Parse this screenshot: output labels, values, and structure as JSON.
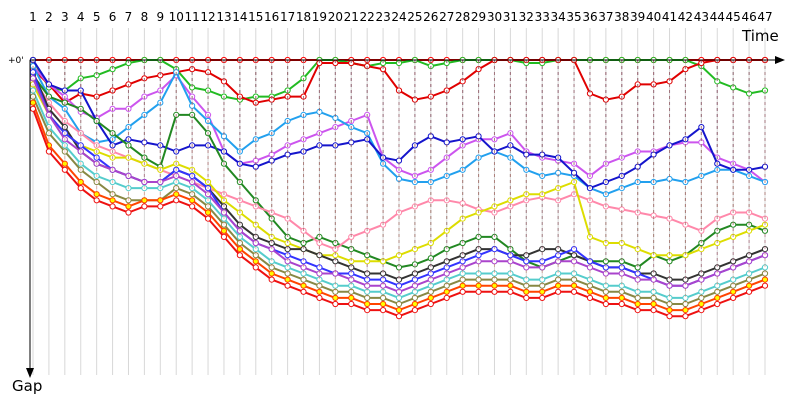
{
  "chart_data": {
    "type": "line",
    "x_axis_label": "Time",
    "y_axis_label": "Gap",
    "y_zero_label": "+0'",
    "x_ticks": [
      "1",
      "2",
      "3",
      "4",
      "5",
      "6",
      "7",
      "8",
      "9",
      "10",
      "11",
      "12",
      "13",
      "14",
      "15",
      "16",
      "17",
      "18",
      "19",
      "20",
      "21",
      "22",
      "23",
      "24",
      "25",
      "26",
      "27",
      "28",
      "29",
      "30",
      "31",
      "32",
      "33",
      "34",
      "35",
      "36",
      "37",
      "38",
      "39",
      "40",
      "41",
      "42",
      "43",
      "44",
      "45",
      "46",
      "47"
    ],
    "y_range": [
      0,
      100
    ],
    "laps": [
      1,
      2,
      3,
      4,
      5,
      6,
      7,
      8,
      9,
      10,
      11,
      12,
      13,
      14,
      15,
      16,
      17,
      18,
      19,
      20,
      21,
      22,
      23,
      24,
      25,
      26,
      27,
      28,
      29,
      30,
      31,
      32,
      33,
      34,
      35,
      36,
      37,
      38,
      39,
      40,
      41,
      42,
      43,
      44,
      45,
      46,
      47
    ],
    "series": [
      {
        "color": "#ff0000",
        "marker": "#ffffff",
        "values": [
          0,
          0,
          0,
          0,
          0,
          0,
          0,
          0,
          0,
          0,
          0,
          0,
          0,
          0,
          0,
          0,
          0,
          0,
          0,
          0,
          0,
          0,
          0,
          0,
          0,
          0,
          0,
          0,
          0,
          0,
          0,
          0,
          0,
          0,
          0,
          0,
          0,
          0,
          0,
          0,
          0,
          0,
          0,
          0,
          0,
          0,
          0
        ]
      },
      {
        "color": "#22bb22",
        "marker": "#ffffff",
        "values": [
          0,
          9,
          10,
          6,
          5,
          3,
          1,
          0,
          0,
          3,
          9,
          10,
          12,
          13,
          12,
          12,
          10,
          6,
          0,
          0,
          1,
          2,
          1,
          1,
          0,
          2,
          1,
          0,
          0,
          0,
          0,
          1,
          1,
          0,
          0,
          0,
          0,
          0,
          0,
          0,
          0,
          0,
          2,
          7,
          9,
          11,
          10
        ]
      },
      {
        "color": "#e00000",
        "marker": "#ffffff",
        "values": [
          3,
          8,
          14,
          11,
          12,
          10,
          8,
          6,
          5,
          4,
          3,
          4,
          7,
          12,
          14,
          13,
          12,
          12,
          1,
          1,
          1,
          2,
          3,
          10,
          13,
          12,
          10,
          7,
          3,
          0,
          0,
          0,
          0,
          0,
          0,
          11,
          13,
          12,
          8,
          8,
          7,
          3,
          1,
          0,
          0,
          0,
          0
        ]
      },
      {
        "color": "#cc55ee",
        "marker": "#ffffff",
        "values": [
          2,
          8,
          12,
          17,
          19,
          16,
          16,
          12,
          10,
          5,
          12,
          18,
          30,
          34,
          33,
          31,
          28,
          26,
          24,
          22,
          20,
          18,
          32,
          36,
          38,
          36,
          32,
          28,
          26,
          26,
          24,
          30,
          32,
          33,
          34,
          38,
          34,
          32,
          30,
          30,
          28,
          27,
          27,
          32,
          34,
          36,
          40
        ]
      },
      {
        "color": "#22a0ee",
        "marker": "#ffffff",
        "values": [
          2,
          12,
          16,
          24,
          27,
          26,
          22,
          18,
          14,
          4,
          15,
          20,
          25,
          30,
          26,
          24,
          20,
          18,
          17,
          19,
          22,
          24,
          34,
          39,
          40,
          40,
          38,
          36,
          32,
          30,
          32,
          36,
          38,
          37,
          38,
          42,
          44,
          42,
          40,
          40,
          39,
          40,
          38,
          36,
          36,
          38,
          40
        ]
      },
      {
        "color": "#1515cc",
        "marker": "#ffffff",
        "values": [
          0,
          8,
          10,
          10,
          20,
          28,
          26,
          27,
          28,
          30,
          28,
          28,
          30,
          34,
          35,
          33,
          31,
          30,
          28,
          28,
          27,
          26,
          32,
          33,
          28,
          25,
          27,
          26,
          25,
          30,
          28,
          31,
          31,
          32,
          37,
          42,
          40,
          38,
          35,
          31,
          28,
          26,
          22,
          34,
          36,
          36,
          35
        ]
      },
      {
        "color": "#228822",
        "marker": "#ffffff",
        "values": [
          5,
          12,
          14,
          16,
          20,
          24,
          28,
          32,
          35,
          18,
          18,
          24,
          34,
          40,
          46,
          52,
          58,
          60,
          58,
          60,
          62,
          64,
          66,
          68,
          67,
          65,
          62,
          60,
          58,
          58,
          62,
          66,
          68,
          66,
          64,
          66,
          66,
          66,
          68,
          64,
          66,
          64,
          60,
          56,
          54,
          54,
          56
        ]
      },
      {
        "color": "#ff88aa",
        "marker": "#ffffff",
        "values": [
          6,
          14,
          20,
          24,
          28,
          30,
          32,
          34,
          36,
          38,
          40,
          42,
          44,
          46,
          48,
          50,
          52,
          56,
          60,
          62,
          58,
          56,
          54,
          50,
          48,
          46,
          46,
          47,
          49,
          50,
          48,
          46,
          45,
          46,
          44,
          46,
          48,
          49,
          50,
          51,
          52,
          54,
          56,
          52,
          50,
          50,
          52
        ]
      },
      {
        "color": "#dddd00",
        "marker": "#ffffff",
        "values": [
          8,
          18,
          24,
          28,
          30,
          32,
          32,
          34,
          36,
          34,
          36,
          40,
          46,
          50,
          54,
          58,
          60,
          62,
          64,
          64,
          66,
          66,
          66,
          64,
          62,
          60,
          56,
          52,
          50,
          48,
          46,
          44,
          44,
          42,
          40,
          58,
          60,
          60,
          62,
          64,
          64,
          64,
          62,
          60,
          58,
          56,
          54
        ]
      },
      {
        "color": "#333333",
        "marker": "#ffffff",
        "values": [
          4,
          16,
          22,
          30,
          34,
          36,
          38,
          40,
          40,
          36,
          38,
          42,
          48,
          54,
          58,
          60,
          62,
          62,
          64,
          66,
          68,
          70,
          70,
          72,
          70,
          68,
          66,
          64,
          62,
          62,
          64,
          64,
          62,
          62,
          64,
          66,
          68,
          68,
          70,
          70,
          72,
          72,
          70,
          68,
          66,
          64,
          62
        ]
      },
      {
        "color": "#3333ff",
        "marker": "#ffffff",
        "values": [
          4,
          18,
          24,
          28,
          32,
          36,
          38,
          40,
          40,
          36,
          38,
          42,
          50,
          56,
          60,
          62,
          64,
          66,
          68,
          70,
          70,
          72,
          72,
          74,
          72,
          70,
          68,
          66,
          64,
          62,
          64,
          66,
          66,
          64,
          62,
          66,
          68,
          68,
          70,
          72,
          74,
          74,
          72,
          70,
          68,
          66,
          64
        ]
      },
      {
        "color": "#aa44cc",
        "marker": "#ffffff",
        "values": [
          6,
          18,
          26,
          30,
          34,
          36,
          38,
          40,
          40,
          38,
          40,
          44,
          50,
          56,
          60,
          62,
          66,
          68,
          70,
          70,
          72,
          74,
          74,
          76,
          74,
          72,
          70,
          68,
          66,
          66,
          66,
          68,
          68,
          66,
          66,
          68,
          70,
          70,
          72,
          72,
          74,
          74,
          72,
          70,
          68,
          66,
          64
        ]
      },
      {
        "color": "#55cccc",
        "marker": "#ffffff",
        "values": [
          10,
          22,
          28,
          34,
          38,
          40,
          42,
          42,
          42,
          40,
          42,
          46,
          52,
          58,
          62,
          66,
          68,
          70,
          72,
          74,
          74,
          76,
          76,
          78,
          76,
          74,
          72,
          70,
          70,
          70,
          70,
          72,
          72,
          70,
          70,
          72,
          74,
          74,
          76,
          76,
          78,
          78,
          76,
          74,
          72,
          70,
          68
        ]
      },
      {
        "color": "#888844",
        "marker": "#ffffff",
        "values": [
          12,
          24,
          30,
          36,
          40,
          44,
          46,
          46,
          46,
          42,
          44,
          48,
          54,
          60,
          64,
          68,
          70,
          72,
          74,
          76,
          76,
          78,
          78,
          80,
          78,
          76,
          74,
          72,
          72,
          72,
          72,
          74,
          74,
          72,
          72,
          74,
          76,
          76,
          78,
          78,
          80,
          80,
          78,
          76,
          74,
          72,
          70
        ]
      },
      {
        "color": "#ff4400",
        "marker": "#ffff00",
        "values": [
          14,
          28,
          34,
          40,
          44,
          46,
          48,
          46,
          46,
          44,
          46,
          50,
          56,
          62,
          66,
          70,
          72,
          74,
          76,
          78,
          78,
          80,
          80,
          82,
          80,
          78,
          76,
          74,
          74,
          74,
          74,
          76,
          76,
          74,
          74,
          76,
          78,
          78,
          80,
          80,
          82,
          82,
          80,
          78,
          76,
          74,
          72
        ]
      },
      {
        "color": "#ee1111",
        "marker": "#ffffff",
        "values": [
          16,
          30,
          36,
          42,
          46,
          48,
          50,
          48,
          48,
          46,
          48,
          52,
          58,
          64,
          68,
          72,
          74,
          76,
          78,
          80,
          80,
          82,
          82,
          84,
          82,
          80,
          78,
          76,
          76,
          76,
          76,
          78,
          78,
          76,
          76,
          78,
          80,
          80,
          82,
          82,
          84,
          84,
          82,
          80,
          78,
          76,
          74
        ]
      }
    ]
  }
}
